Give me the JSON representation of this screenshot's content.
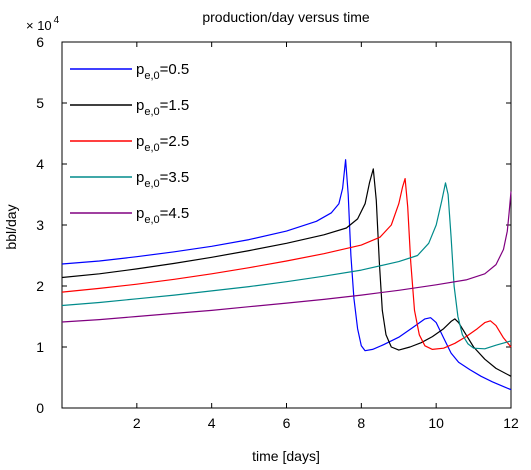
{
  "chart_data": {
    "type": "line",
    "title": "production/day versus time",
    "xlabel": "time [days]",
    "ylabel": "bbl/day",
    "multiplier_base": "× 10",
    "multiplier_exponent": "4",
    "xlim": [
      0,
      12
    ],
    "ylim": [
      0,
      6
    ],
    "xticks": [
      2,
      4,
      6,
      8,
      10,
      12
    ],
    "yticks": [
      0,
      1,
      2,
      3,
      4,
      5,
      6
    ],
    "grid": false,
    "legend_position": "top-left",
    "series": [
      {
        "name": "p_e,0=0.5",
        "label_main": "p",
        "label_sub": "e,0",
        "label_value": "=0.5",
        "color": "#0000ff",
        "x": [
          0,
          1,
          2,
          3,
          4,
          5,
          6,
          6.8,
          7.2,
          7.4,
          7.5,
          7.58,
          7.65,
          7.72,
          7.8,
          7.9,
          8.0,
          8.1,
          8.3,
          8.6,
          9.0,
          9.4,
          9.7,
          9.85,
          10.0,
          10.2,
          10.4,
          10.6,
          10.9,
          11.2,
          11.5,
          11.8,
          12.0
        ],
        "y": [
          2.36,
          2.41,
          2.48,
          2.56,
          2.65,
          2.76,
          2.9,
          3.06,
          3.2,
          3.35,
          3.6,
          4.07,
          3.5,
          2.5,
          1.8,
          1.3,
          1.02,
          0.94,
          0.96,
          1.04,
          1.16,
          1.33,
          1.46,
          1.48,
          1.4,
          1.15,
          0.9,
          0.75,
          0.63,
          0.52,
          0.43,
          0.35,
          0.3
        ]
      },
      {
        "name": "p_e,0=1.5",
        "label_main": "p",
        "label_sub": "e,0",
        "label_value": "=1.5",
        "color": "#000000",
        "x": [
          0,
          1,
          2,
          3,
          4,
          5,
          6,
          7,
          7.6,
          7.9,
          8.1,
          8.22,
          8.32,
          8.4,
          8.48,
          8.56,
          8.66,
          8.8,
          9.0,
          9.3,
          9.6,
          9.9,
          10.2,
          10.4,
          10.5,
          10.6,
          10.8,
          11.0,
          11.3,
          11.6,
          12.0
        ],
        "y": [
          2.14,
          2.2,
          2.28,
          2.37,
          2.47,
          2.58,
          2.7,
          2.84,
          2.95,
          3.1,
          3.35,
          3.7,
          3.92,
          3.4,
          2.4,
          1.6,
          1.2,
          1.0,
          0.95,
          1.0,
          1.07,
          1.17,
          1.3,
          1.42,
          1.46,
          1.4,
          1.2,
          1.0,
          0.8,
          0.65,
          0.52
        ]
      },
      {
        "name": "p_e,0=2.5",
        "label_main": "p",
        "label_sub": "e,0",
        "label_value": "=2.5",
        "color": "#ff0000",
        "x": [
          0,
          1,
          2,
          3,
          4,
          5,
          6,
          7,
          8,
          8.5,
          8.8,
          9.0,
          9.1,
          9.17,
          9.24,
          9.32,
          9.42,
          9.55,
          9.7,
          9.9,
          10.2,
          10.5,
          10.8,
          11.1,
          11.3,
          11.45,
          11.6,
          11.8,
          12.0
        ],
        "y": [
          1.9,
          1.96,
          2.03,
          2.11,
          2.2,
          2.3,
          2.41,
          2.53,
          2.67,
          2.8,
          3.0,
          3.35,
          3.62,
          3.76,
          3.3,
          2.4,
          1.6,
          1.2,
          1.02,
          0.96,
          0.98,
          1.06,
          1.17,
          1.3,
          1.4,
          1.43,
          1.35,
          1.15,
          1.0
        ]
      },
      {
        "name": "p_e,0=3.5",
        "label_main": "p",
        "label_sub": "e,0",
        "label_value": "=3.5",
        "color": "#008b8b",
        "x": [
          0,
          1,
          2,
          3,
          4,
          5,
          6,
          7,
          8,
          9,
          9.5,
          9.8,
          10.0,
          10.15,
          10.25,
          10.32,
          10.4,
          10.48,
          10.58,
          10.7,
          10.85,
          11.0,
          11.3,
          11.6,
          12.0
        ],
        "y": [
          1.68,
          1.73,
          1.79,
          1.85,
          1.92,
          1.99,
          2.07,
          2.16,
          2.26,
          2.4,
          2.5,
          2.7,
          3.0,
          3.4,
          3.69,
          3.5,
          2.8,
          2.0,
          1.5,
          1.2,
          1.05,
          0.98,
          0.97,
          1.03,
          1.1
        ]
      },
      {
        "name": "p_e,0=4.5",
        "label_main": "p",
        "label_sub": "e,0",
        "label_value": "=4.5",
        "color": "#800080",
        "x": [
          0,
          1,
          2,
          3,
          4,
          5,
          6,
          7,
          8,
          9,
          10,
          10.8,
          11.3,
          11.6,
          11.8,
          11.9,
          11.95,
          12.0
        ],
        "y": [
          1.41,
          1.45,
          1.5,
          1.55,
          1.6,
          1.66,
          1.72,
          1.78,
          1.85,
          1.93,
          2.02,
          2.1,
          2.2,
          2.35,
          2.6,
          2.9,
          3.2,
          3.55
        ]
      }
    ]
  }
}
